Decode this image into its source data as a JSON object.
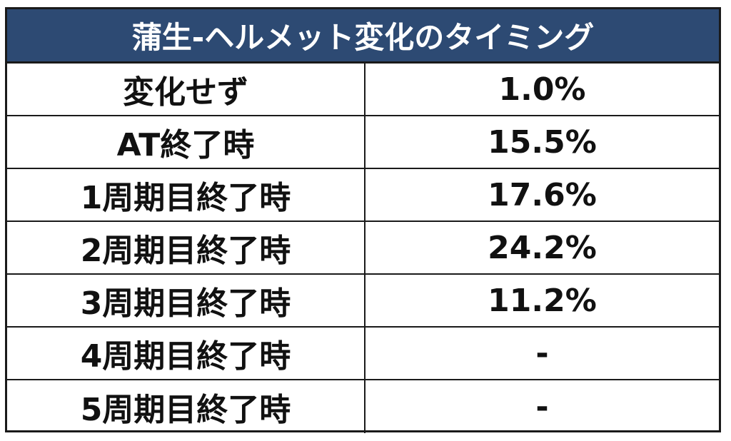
{
  "table": {
    "title": "蒲生-ヘルメット変化のタイミング",
    "rows": [
      {
        "timing": "変化せず",
        "rate": "1.0%"
      },
      {
        "timing": "AT終了時",
        "rate": "15.5%"
      },
      {
        "timing": "1周期目終了時",
        "rate": "17.6%"
      },
      {
        "timing": "2周期目終了時",
        "rate": "24.2%"
      },
      {
        "timing": "3周期目終了時",
        "rate": "11.2%"
      },
      {
        "timing": "4周期目終了時",
        "rate": "-"
      },
      {
        "timing": "5周期目終了時",
        "rate": "-"
      }
    ]
  },
  "colors": {
    "header_bg": "#2d4a73",
    "header_text": "#ffffff",
    "border": "#1a1a1a",
    "body_text": "#111111"
  }
}
